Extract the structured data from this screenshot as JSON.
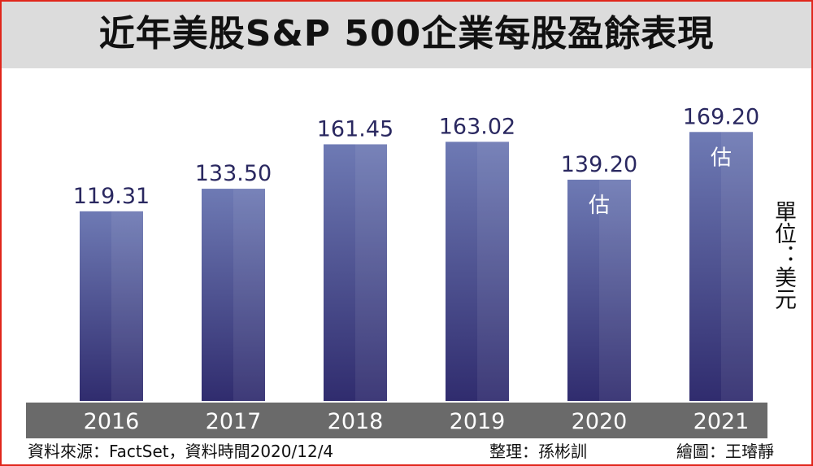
{
  "chart_data": {
    "type": "bar",
    "title": "近年美股S&P 500企業每股盈餘表現",
    "categories": [
      "2016",
      "2017",
      "2018",
      "2019",
      "2020",
      "2021"
    ],
    "values": [
      119.31,
      133.5,
      161.45,
      163.02,
      139.2,
      169.2
    ],
    "value_labels": [
      "119.31",
      "133.50",
      "161.45",
      "163.02",
      "139.20",
      "169.20"
    ],
    "estimate_marks": [
      "",
      "",
      "",
      "",
      "估",
      "估"
    ],
    "unit_label": "單位：美元",
    "ylim": [
      0,
      175
    ],
    "grid": false,
    "legend": "none",
    "colors": {
      "bar_top": "#6e7ab4",
      "bar_bottom": "#302c6e",
      "axis_band": "#6a6a6a",
      "title_band": "#dcdcdc",
      "frame": "#e0261b",
      "value_text": "#2a2860"
    }
  },
  "footer": {
    "source": "資料來源：FactSet，資料時間2020/12/4",
    "editor": "整理：孫彬訓",
    "illustrator": "繪圖：王璿靜"
  }
}
